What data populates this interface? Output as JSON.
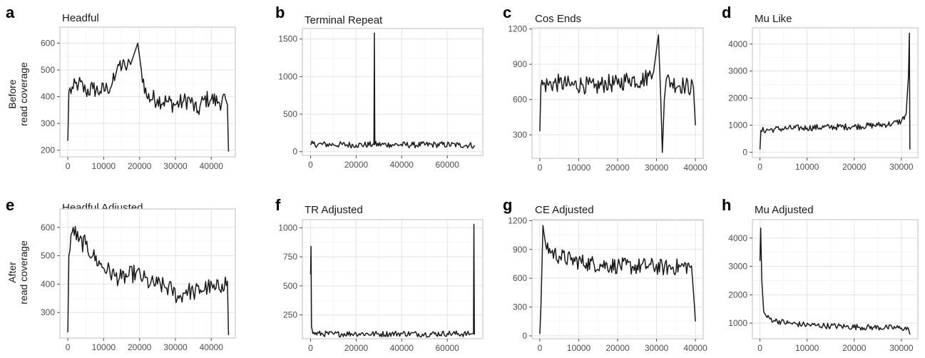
{
  "row_labels": [
    {
      "line1": "Before",
      "line2": "read coverage"
    },
    {
      "line1": "After",
      "line2": "read coverage"
    }
  ],
  "colors": {
    "line": "#1a1a1a",
    "grid": "#e3e3e3",
    "panel_border": "#bdbdbd"
  },
  "chart_data": [
    {
      "letter": "a",
      "title": "Headful",
      "type": "line",
      "xlim": [
        -2200,
        46700
      ],
      "ylim": [
        175,
        660
      ],
      "xticks": [
        0,
        10000,
        20000,
        30000,
        40000
      ],
      "yticks": [
        200,
        300,
        400,
        500,
        600
      ],
      "series": [
        {
          "x": [
            0,
            300,
            1500,
            3000,
            5000,
            7000,
            9000,
            11000,
            13000,
            14000,
            16000,
            17500,
            18500,
            19500,
            20500,
            22000,
            25000,
            28000,
            30000,
            32000,
            34000,
            36000,
            38000,
            40000,
            42000,
            44000,
            44500,
            44800
          ],
          "y": [
            235,
            420,
            430,
            450,
            420,
            430,
            420,
            430,
            460,
            520,
            510,
            520,
            560,
            600,
            500,
            400,
            390,
            380,
            370,
            380,
            390,
            340,
            390,
            390,
            380,
            390,
            370,
            195
          ]
        }
      ]
    },
    {
      "letter": "b",
      "title": "Terminal Repeat",
      "type": "line",
      "xlim": [
        -3600,
        75600
      ],
      "ylim": [
        -50,
        1640
      ],
      "xticks": [
        0,
        20000,
        40000,
        60000
      ],
      "yticks": [
        0,
        500,
        1000,
        1500
      ],
      "series": [
        {
          "x": [
            0,
            200,
            10000,
            20000,
            27800,
            28000,
            28200,
            35000,
            45000,
            55000,
            65000,
            72000
          ],
          "y": [
            90,
            100,
            95,
            90,
            95,
            1580,
            95,
            95,
            90,
            95,
            90,
            85
          ]
        }
      ]
    },
    {
      "letter": "c",
      "title": "Cos Ends",
      "type": "line",
      "xlim": [
        -2000,
        42000
      ],
      "ylim": [
        100,
        1210
      ],
      "xticks": [
        0,
        10000,
        20000,
        30000,
        40000
      ],
      "yticks": [
        300,
        600,
        900,
        1200
      ],
      "series": [
        {
          "x": [
            0,
            300,
            2000,
            5000,
            8000,
            11000,
            14000,
            17000,
            20000,
            23000,
            26000,
            28000,
            29500,
            30500,
            31000,
            31500,
            32000,
            32500,
            34000,
            37000,
            39500,
            40000
          ],
          "y": [
            330,
            720,
            730,
            740,
            720,
            730,
            700,
            740,
            730,
            780,
            760,
            800,
            900,
            1150,
            700,
            150,
            600,
            770,
            740,
            720,
            700,
            380
          ]
        }
      ]
    },
    {
      "letter": "d",
      "title": "Mu Like",
      "type": "line",
      "xlim": [
        -1600,
        33500
      ],
      "ylim": [
        -200,
        4600
      ],
      "xticks": [
        0,
        10000,
        20000,
        30000
      ],
      "yticks": [
        0,
        1000,
        2000,
        3000,
        4000
      ],
      "series": [
        {
          "x": [
            0,
            200,
            3000,
            6000,
            10000,
            15000,
            20000,
            25000,
            28000,
            30000,
            31000,
            31500,
            31700,
            31800
          ],
          "y": [
            100,
            800,
            850,
            880,
            900,
            930,
            950,
            1000,
            1050,
            1150,
            1400,
            2800,
            4400,
            100
          ]
        }
      ]
    },
    {
      "letter": "e",
      "title": "Headful Adjusted",
      "type": "line",
      "xlim": [
        -2200,
        46700
      ],
      "ylim": [
        210,
        665
      ],
      "xticks": [
        0,
        10000,
        20000,
        30000,
        40000
      ],
      "yticks": [
        300,
        400,
        500,
        600
      ],
      "series": [
        {
          "x": [
            0,
            300,
            1500,
            3000,
            5000,
            7000,
            9000,
            11000,
            13000,
            15000,
            17000,
            19000,
            21000,
            23000,
            25000,
            27000,
            29000,
            31000,
            33000,
            35000,
            37000,
            39000,
            41000,
            43000,
            44500,
            44800
          ],
          "y": [
            230,
            500,
            600,
            550,
            540,
            500,
            470,
            450,
            430,
            420,
            430,
            440,
            420,
            400,
            400,
            390,
            380,
            350,
            380,
            370,
            380,
            390,
            380,
            400,
            410,
            220
          ]
        }
      ]
    },
    {
      "letter": "f",
      "title": "TR Adjusted",
      "type": "line",
      "xlim": [
        -3600,
        75600
      ],
      "ylim": [
        45,
        1070
      ],
      "xticks": [
        0,
        20000,
        40000,
        60000
      ],
      "yticks": [
        250,
        500,
        750,
        1000
      ],
      "series": [
        {
          "x": [
            0,
            200,
            400,
            1000,
            10000,
            20000,
            30000,
            40000,
            50000,
            60000,
            70000,
            71500,
            71700,
            71900
          ],
          "y": [
            600,
            840,
            150,
            90,
            85,
            90,
            85,
            90,
            85,
            90,
            85,
            90,
            1030,
            80
          ]
        }
      ]
    },
    {
      "letter": "g",
      "title": "CE Adjusted",
      "type": "line",
      "xlim": [
        -2000,
        42000
      ],
      "ylim": [
        -30,
        1210
      ],
      "xticks": [
        0,
        10000,
        20000,
        30000,
        40000
      ],
      "yticks": [
        0,
        300,
        600,
        900,
        1200
      ],
      "series": [
        {
          "x": [
            0,
            300,
            800,
            1500,
            3000,
            5000,
            8000,
            12000,
            16000,
            20000,
            24000,
            28000,
            32000,
            36000,
            39000,
            39600,
            40000
          ],
          "y": [
            20,
            300,
            1150,
            950,
            870,
            830,
            790,
            760,
            740,
            730,
            720,
            730,
            710,
            720,
            730,
            400,
            150
          ]
        }
      ]
    },
    {
      "letter": "h",
      "title": "Mu Adjusted",
      "type": "line",
      "xlim": [
        -1600,
        33500
      ],
      "ylim": [
        450,
        4650
      ],
      "xticks": [
        0,
        10000,
        20000,
        30000
      ],
      "yticks": [
        1000,
        2000,
        3000,
        4000
      ],
      "series": [
        {
          "x": [
            0,
            150,
            400,
            800,
            1500,
            3000,
            6000,
            9000,
            12000,
            15000,
            18000,
            21000,
            24000,
            27000,
            30000,
            31500,
            31800
          ],
          "y": [
            3200,
            4350,
            2500,
            1400,
            1200,
            1100,
            1000,
            950,
            920,
            900,
            880,
            860,
            850,
            840,
            830,
            800,
            600
          ]
        }
      ]
    }
  ]
}
